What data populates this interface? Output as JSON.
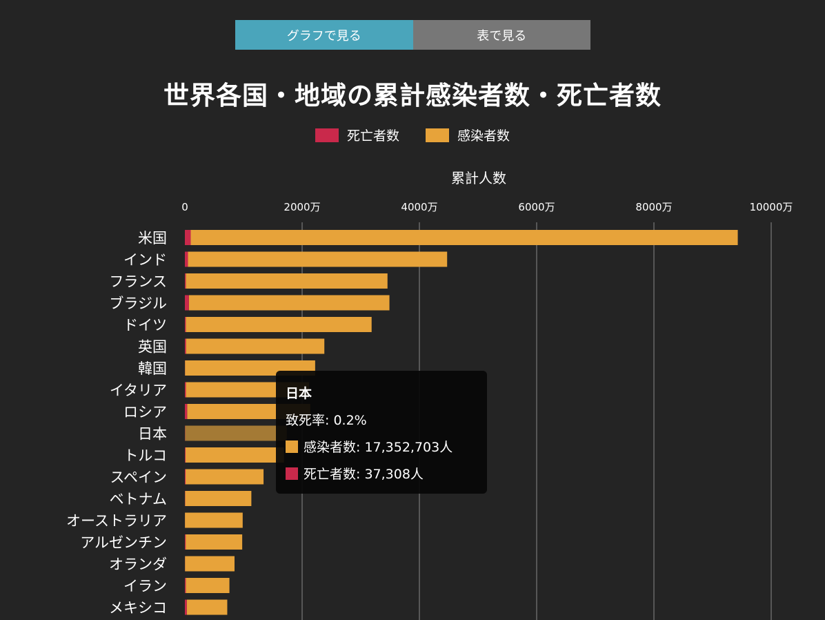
{
  "tabs": [
    {
      "label": "グラフで見る",
      "active": true
    },
    {
      "label": "表で見る",
      "active": false
    }
  ],
  "colors": {
    "background": "#242424",
    "deaths": "#c9294b",
    "cases": "#e7a33a",
    "tab_active": "#4aa5bb",
    "tab_inactive": "#777777",
    "grid": "#8a8a8a"
  },
  "legend": [
    {
      "label": "死亡者数",
      "color": "#c9294b"
    },
    {
      "label": "感染者数",
      "color": "#e7a33a"
    }
  ],
  "tooltip": {
    "title": "日本",
    "fatality_rate": "致死率: 0.2%",
    "cases": "感染者数: 17,352,703人",
    "deaths": "死亡者数: 37,308人"
  },
  "chart_data": {
    "type": "bar",
    "orientation": "horizontal",
    "stacked": true,
    "title": "世界各国・地域の累計感染者数・死亡者数",
    "xlabel": "累計人数",
    "xlim": [
      0,
      10000
    ],
    "x_unit": "万",
    "xticks": [
      "0",
      "2000万",
      "4000万",
      "6000万",
      "8000万",
      "10000万"
    ],
    "xtick_values": [
      0,
      2000,
      4000,
      6000,
      8000,
      10000
    ],
    "grid": true,
    "legend_position": "top-center",
    "highlighted_category": "日本",
    "categories": [
      "米国",
      "インド",
      "フランス",
      "ブラジル",
      "ドイツ",
      "英国",
      "韓国",
      "イタリア",
      "ロシア",
      "日本",
      "トルコ",
      "スペイン",
      "ベトナム",
      "オーストラリア",
      "アルゼンチン",
      "オランダ",
      "イラン",
      "メキシコ"
    ],
    "series": [
      {
        "name": "死亡者数",
        "values": [
          100,
          53,
          16,
          69,
          15,
          19,
          2,
          18,
          39,
          3.73,
          10,
          12,
          4,
          1,
          13,
          2,
          15,
          33
        ]
      },
      {
        "name": "感染者数",
        "values": [
          9330,
          4420,
          3440,
          3420,
          3170,
          2360,
          2220,
          2100,
          2100,
          1735.27,
          1680,
          1330,
          1130,
          985,
          965,
          845,
          745,
          690
        ]
      }
    ]
  }
}
